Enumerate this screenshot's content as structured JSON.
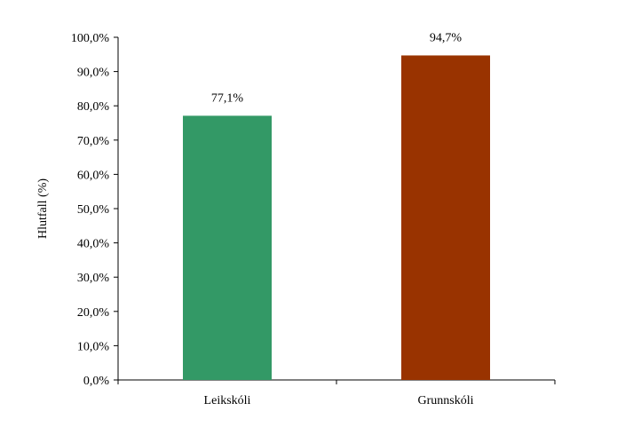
{
  "chart_data": {
    "type": "bar",
    "title": "",
    "xlabel": "",
    "ylabel": "Hlutfall (%)",
    "ylim": [
      0,
      100
    ],
    "y_ticks": [
      "0,0%",
      "10,0%",
      "20,0%",
      "30,0%",
      "40,0%",
      "50,0%",
      "60,0%",
      "70,0%",
      "80,0%",
      "90,0%",
      "100,0%"
    ],
    "categories": [
      "Leikskóli",
      "Grunnskóli"
    ],
    "values": [
      77.1,
      94.7
    ],
    "data_labels": [
      "77,1%",
      "94,7%"
    ],
    "colors": [
      "#339966",
      "#993300"
    ],
    "grid": false,
    "legend": "none"
  }
}
